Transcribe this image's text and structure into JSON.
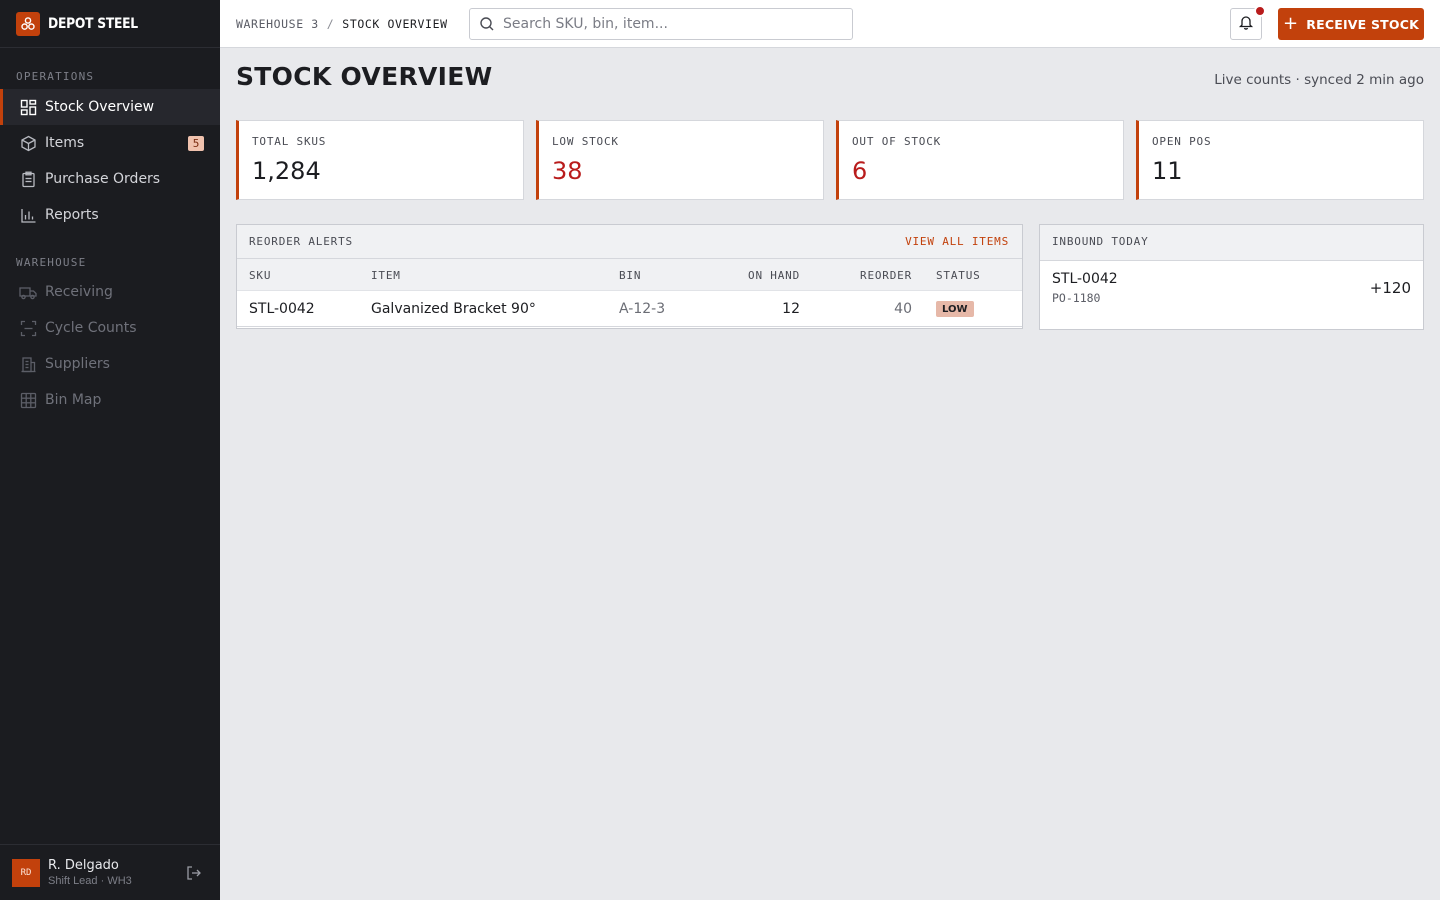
{
  "brand": {
    "name": "DEPOT STEEL",
    "logo_icon": "warehouse-logo-icon",
    "accent": "#c2410c"
  },
  "sidebar": {
    "sections": [
      {
        "label": "OPERATIONS",
        "items": [
          {
            "label": "Stock Overview",
            "icon": "dashboard-icon",
            "active": true
          },
          {
            "label": "Items",
            "icon": "box-icon",
            "badge": "5"
          },
          {
            "label": "Purchase Orders",
            "icon": "clipboard-icon"
          },
          {
            "label": "Reports",
            "icon": "bar-chart-icon"
          }
        ]
      },
      {
        "label": "WAREHOUSE",
        "items": [
          {
            "label": "Receiving",
            "icon": "truck-icon"
          },
          {
            "label": "Cycle Counts",
            "icon": "scan-icon"
          },
          {
            "label": "Suppliers",
            "icon": "building-icon"
          },
          {
            "label": "Bin Map",
            "icon": "grid-icon"
          }
        ]
      }
    ],
    "user": {
      "initials": "RD",
      "name": "R. Delgado",
      "role": "Shift Lead · WH3"
    }
  },
  "header": {
    "breadcrumb": [
      "WAREHOUSE 3",
      "/",
      "STOCK OVERVIEW"
    ],
    "search_placeholder": "Search SKU, bin, item...",
    "receive_label": "RECEIVE STOCK",
    "notification_dot_color": "#b91c1c"
  },
  "main": {
    "title": "STOCK OVERVIEW",
    "sync_status": "Live counts · synced 2 min ago",
    "stats": [
      {
        "label": "TOTAL SKUS",
        "value": "1,284",
        "alert": false
      },
      {
        "label": "LOW STOCK",
        "value": "38",
        "alert": true
      },
      {
        "label": "OUT OF STOCK",
        "value": "6",
        "alert": true
      },
      {
        "label": "OPEN POS",
        "value": "11",
        "alert": false
      }
    ],
    "reorder_alerts": {
      "title": "REORDER ALERTS",
      "view_all_label": "VIEW ALL ITEMS",
      "columns": [
        "SKU",
        "ITEM",
        "BIN",
        "ON HAND",
        "REORDER",
        "STATUS"
      ],
      "rows": [
        {
          "sku": "STL-0042",
          "item": "Galvanized Bracket 90°",
          "bin": "A-12-3",
          "on_hand": "12",
          "reorder": "40",
          "status": "LOW"
        }
      ]
    },
    "inbound": {
      "title": "INBOUND TODAY",
      "rows": [
        {
          "sku": "STL-0042",
          "po": "PO-1180",
          "qty": "+120"
        }
      ]
    }
  }
}
